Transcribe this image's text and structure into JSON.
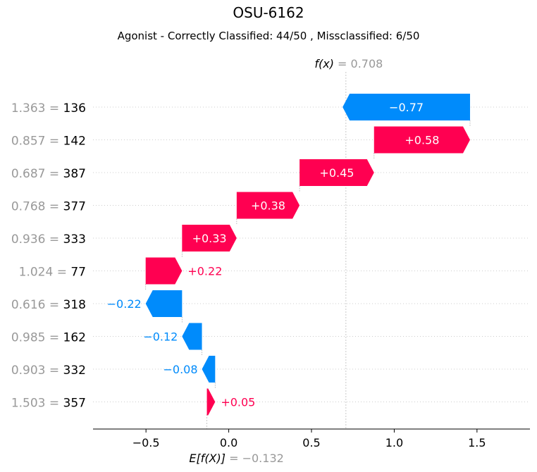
{
  "chart_data": {
    "type": "bar",
    "title": "OSU-6162",
    "subtitle": "Agonist - Correctly Classified: 44/50 , Missclassified: 6/50",
    "base_value": -0.132,
    "output_value": 0.708,
    "fx_label": "f(x)",
    "fx_value_label": "= 0.708",
    "efx_label": "E[f(X)]",
    "efx_value_label": "= −0.132",
    "xlim": [
      -0.82,
      1.82
    ],
    "x_ticks": [
      -0.5,
      0.0,
      0.5,
      1.0,
      1.5
    ],
    "x_tick_labels": [
      "−0.5",
      "0.0",
      "0.5",
      "1.0",
      "1.5"
    ],
    "features": [
      {
        "value": "1.363",
        "name": "136",
        "contribution": -0.77,
        "label": "−0.77"
      },
      {
        "value": "0.857",
        "name": "142",
        "contribution": 0.58,
        "label": "+0.58"
      },
      {
        "value": "0.687",
        "name": "387",
        "contribution": 0.45,
        "label": "+0.45"
      },
      {
        "value": "0.768",
        "name": "377",
        "contribution": 0.38,
        "label": "+0.38"
      },
      {
        "value": "0.936",
        "name": "333",
        "contribution": 0.33,
        "label": "+0.33"
      },
      {
        "value": "1.024",
        "name": "77",
        "contribution": 0.22,
        "label": "+0.22"
      },
      {
        "value": "0.616",
        "name": "318",
        "contribution": -0.22,
        "label": "−0.22"
      },
      {
        "value": "0.985",
        "name": "162",
        "contribution": -0.12,
        "label": "−0.12"
      },
      {
        "value": "0.903",
        "name": "332",
        "contribution": -0.08,
        "label": "−0.08"
      },
      {
        "value": "1.503",
        "name": "357",
        "contribution": 0.05,
        "label": "+0.05"
      }
    ],
    "colors": {
      "positive": "#ff0051",
      "negative": "#008bfb",
      "muted_text": "#999999"
    }
  }
}
